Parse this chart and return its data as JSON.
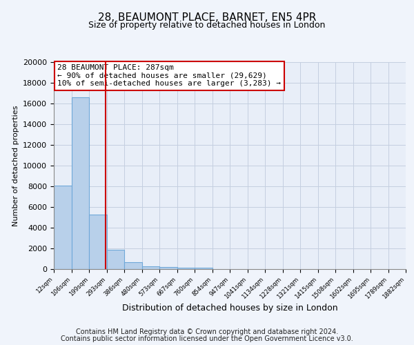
{
  "title": "28, BEAUMONT PLACE, BARNET, EN5 4PR",
  "subtitle": "Size of property relative to detached houses in London",
  "xlabel": "Distribution of detached houses by size in London",
  "ylabel": "Number of detached properties",
  "bar_values": [
    8100,
    16600,
    5300,
    1850,
    700,
    300,
    220,
    150,
    120
  ],
  "bin_edges": [
    12,
    106,
    199,
    293,
    386,
    480,
    573,
    667,
    760,
    854
  ],
  "extra_ticks": [
    947,
    1041,
    1134,
    1228,
    1321,
    1415,
    1508,
    1602,
    1695,
    1789,
    1882
  ],
  "property_size": 287,
  "property_label": "28 BEAUMONT PLACE: 287sqm",
  "annotation_line1": "← 90% of detached houses are smaller (29,629)",
  "annotation_line2": "10% of semi-detached houses are larger (3,283) →",
  "bar_color": "#b8d0ea",
  "bar_edge_color": "#6fa8d8",
  "vline_color": "#cc0000",
  "box_edge_color": "#cc0000",
  "background_color": "#f0f4fb",
  "plot_bg_color": "#e8eef8",
  "grid_color": "#c4cfe0",
  "ylim": [
    0,
    20000
  ],
  "yticks": [
    0,
    2000,
    4000,
    6000,
    8000,
    10000,
    12000,
    14000,
    16000,
    18000,
    20000
  ],
  "footer_line1": "Contains HM Land Registry data © Crown copyright and database right 2024.",
  "footer_line2": "Contains public sector information licensed under the Open Government Licence v3.0."
}
